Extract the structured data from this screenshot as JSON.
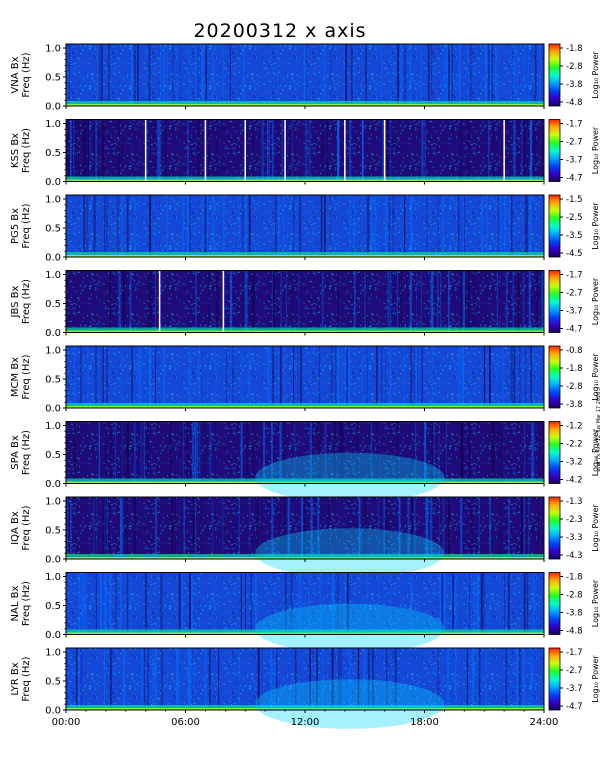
{
  "figure_title": "20200312 x axis",
  "stamp": "wnd 7x 4x4 12 Tue Mar 17 2020",
  "chart_data": {
    "type": "heatmap",
    "x_ticks": [
      "00:00",
      "06:00",
      "12:00",
      "18:00",
      "24:00"
    ],
    "xlim": [
      0,
      24
    ],
    "ylim": [
      0,
      1.0
    ],
    "y_ticks": [
      "0.0",
      "0.5",
      "1.0"
    ],
    "colorbar_label": "Log₁₀ Power",
    "colormap": [
      "#1a0060",
      "#3300cc",
      "#0044ff",
      "#00aaff",
      "#00ffcc",
      "#22ff22",
      "#ccff00",
      "#ffaa00",
      "#ff2200"
    ],
    "panels": [
      {
        "station": "VNA",
        "ylabel": "VNA Bx\nFreq (Hz)",
        "cbar_ticks": [
          "-1.8",
          "-2.8",
          "-3.8",
          "-4.8"
        ],
        "gaps": []
      },
      {
        "station": "KSS",
        "ylabel": "KSS Bx\nFreq (Hz)",
        "cbar_ticks": [
          "-1.7",
          "-2.7",
          "-3.7",
          "-4.7"
        ],
        "gaps": [
          4.0,
          7.0,
          9.0,
          11.0,
          14.0,
          16.0,
          22.0
        ]
      },
      {
        "station": "PG5",
        "ylabel": "PG5 Bx\nFreq (Hz)",
        "cbar_ticks": [
          "-1.5",
          "-2.5",
          "-3.5",
          "-4.5"
        ],
        "gaps": []
      },
      {
        "station": "JBS",
        "ylabel": "JBS Bx\nFreq (Hz)",
        "cbar_ticks": [
          "-1.7",
          "-2.7",
          "-3.7",
          "-4.7"
        ],
        "gaps": [
          4.7,
          7.9
        ]
      },
      {
        "station": "MCM",
        "ylabel": "MCM Bx\nFreq (Hz)",
        "cbar_ticks": [
          "-0.8",
          "-1.8",
          "-2.8",
          "-3.8"
        ],
        "gaps": []
      },
      {
        "station": "SPA",
        "ylabel": "SPA Bx\nFreq (Hz)",
        "cbar_ticks": [
          "-1.2",
          "-2.2",
          "-3.2",
          "-4.2"
        ],
        "gaps": []
      },
      {
        "station": "IQA",
        "ylabel": "IQA Bx\nFreq (Hz)",
        "cbar_ticks": [
          "-1.3",
          "-2.3",
          "-3.3",
          "-4.3"
        ],
        "gaps": []
      },
      {
        "station": "NAL",
        "ylabel": "NAL Bx\nFreq (Hz)",
        "cbar_ticks": [
          "-1.8",
          "-2.8",
          "-3.8",
          "-4.8"
        ],
        "gaps": []
      },
      {
        "station": "LYR",
        "ylabel": "LYR Bx\nFreq (Hz)",
        "cbar_ticks": [
          "-1.7",
          "-2.7",
          "-3.7",
          "-4.7"
        ],
        "gaps": []
      }
    ]
  }
}
